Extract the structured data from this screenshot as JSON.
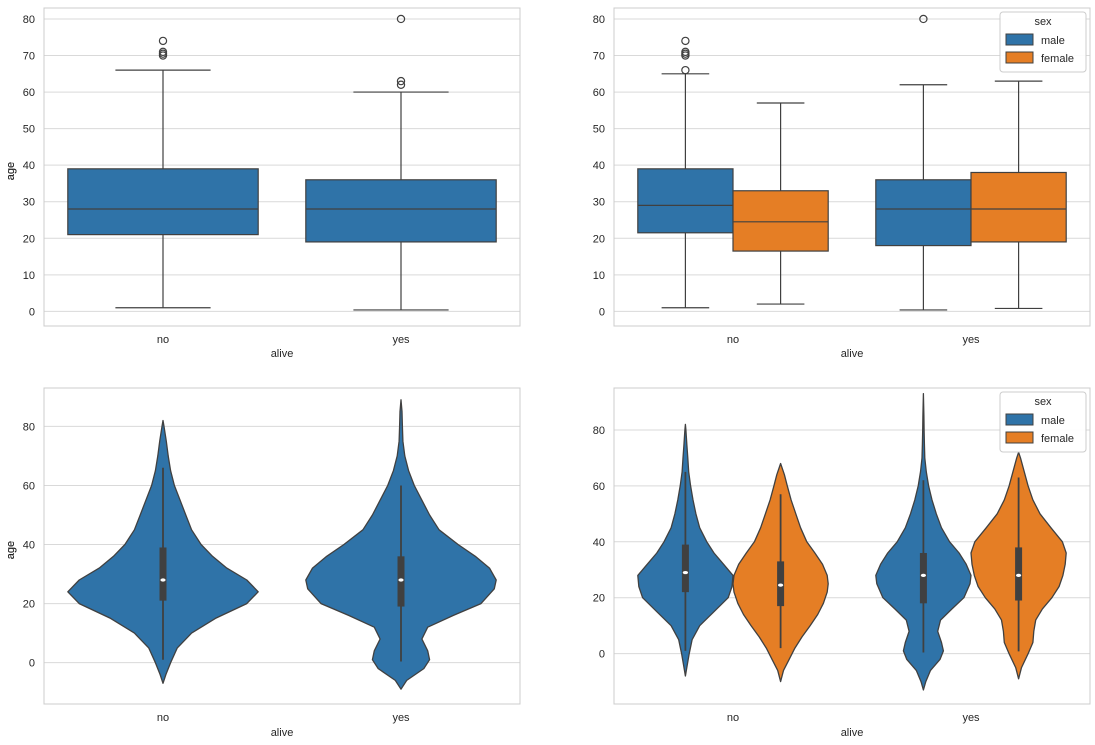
{
  "colors": {
    "male": "#2f73a8",
    "female": "#e57e25",
    "line": "#404040",
    "grid": "#d9d9d9",
    "frame": "#cccccc"
  },
  "chart_data": [
    {
      "id": "box_alive",
      "type": "box",
      "title": "",
      "xlabel": "alive",
      "ylabel": "age",
      "categories": [
        "no",
        "yes"
      ],
      "yticks": [
        0,
        10,
        20,
        30,
        40,
        50,
        60,
        70,
        80
      ],
      "ylim": [
        -4,
        83
      ],
      "grid": true,
      "series": [
        {
          "boxes": [
            {
              "category": "no",
              "whislo": 1,
              "q1": 21,
              "med": 28,
              "q3": 39,
              "whishi": 66,
              "fliers": [
                70,
                70.5,
                71,
                74
              ]
            },
            {
              "category": "yes",
              "whislo": 0.4,
              "q1": 19,
              "med": 28,
              "q3": 36,
              "whishi": 60,
              "fliers": [
                62,
                63,
                80
              ]
            }
          ]
        }
      ]
    },
    {
      "id": "box_alive_sex",
      "type": "box",
      "title": "",
      "xlabel": "alive",
      "ylabel": "age",
      "categories": [
        "no",
        "yes"
      ],
      "yticks": [
        0,
        10,
        20,
        30,
        40,
        50,
        60,
        70,
        80
      ],
      "ylim": [
        -4,
        83
      ],
      "grid": true,
      "legend": {
        "title": "sex",
        "position": "top-right"
      },
      "series": [
        {
          "name": "male",
          "boxes": [
            {
              "category": "no",
              "whislo": 1,
              "q1": 21.5,
              "med": 29,
              "q3": 39,
              "whishi": 65,
              "fliers": [
                66,
                70,
                70.5,
                71,
                74
              ]
            },
            {
              "category": "yes",
              "whislo": 0.4,
              "q1": 18,
              "med": 28,
              "q3": 36,
              "whishi": 62,
              "fliers": [
                80
              ]
            }
          ]
        },
        {
          "name": "female",
          "boxes": [
            {
              "category": "no",
              "whislo": 2,
              "q1": 16.5,
              "med": 24.5,
              "q3": 33,
              "whishi": 57,
              "fliers": []
            },
            {
              "category": "yes",
              "whislo": 0.8,
              "q1": 19,
              "med": 28,
              "q3": 38,
              "whishi": 63,
              "fliers": []
            }
          ]
        }
      ]
    },
    {
      "id": "violin_alive",
      "type": "violin",
      "title": "",
      "xlabel": "alive",
      "ylabel": "age",
      "categories": [
        "no",
        "yes"
      ],
      "yticks": [
        0,
        20,
        40,
        60,
        80
      ],
      "ylim": [
        -14,
        93
      ],
      "grid": true,
      "series": [
        {
          "violins": [
            {
              "category": "no",
              "min": -7,
              "max": 82,
              "q1": 21,
              "med": 28,
              "q3": 39,
              "whislo": 1,
              "whishi": 66,
              "profile": [
                [
                  -7,
                  0
                ],
                [
                  -4,
                  0.03
                ],
                [
                  0,
                  0.08
                ],
                [
                  5,
                  0.15
                ],
                [
                  10,
                  0.3
                ],
                [
                  15,
                  0.55
                ],
                [
                  20,
                  0.88
                ],
                [
                  24,
                  1.0
                ],
                [
                  28,
                  0.88
                ],
                [
                  32,
                  0.67
                ],
                [
                  36,
                  0.52
                ],
                [
                  40,
                  0.4
                ],
                [
                  45,
                  0.3
                ],
                [
                  50,
                  0.24
                ],
                [
                  55,
                  0.18
                ],
                [
                  60,
                  0.12
                ],
                [
                  65,
                  0.08
                ],
                [
                  70,
                  0.055
                ],
                [
                  75,
                  0.035
                ],
                [
                  80,
                  0.01
                ],
                [
                  82,
                  0
                ]
              ]
            },
            {
              "category": "yes",
              "min": -9,
              "max": 89,
              "q1": 19,
              "med": 28,
              "q3": 36,
              "whislo": 0.4,
              "whishi": 60,
              "profile": [
                [
                  -9,
                  0
                ],
                [
                  -6,
                  0.06
                ],
                [
                  -2,
                  0.24
                ],
                [
                  1,
                  0.3
                ],
                [
                  4,
                  0.28
                ],
                [
                  8,
                  0.22
                ],
                [
                  12,
                  0.28
                ],
                [
                  16,
                  0.55
                ],
                [
                  20,
                  0.84
                ],
                [
                  25,
                  0.98
                ],
                [
                  28,
                  1.0
                ],
                [
                  32,
                  0.93
                ],
                [
                  36,
                  0.78
                ],
                [
                  40,
                  0.6
                ],
                [
                  45,
                  0.4
                ],
                [
                  50,
                  0.3
                ],
                [
                  55,
                  0.22
                ],
                [
                  60,
                  0.14
                ],
                [
                  65,
                  0.08
                ],
                [
                  70,
                  0.04
                ],
                [
                  75,
                  0.02
                ],
                [
                  80,
                  0.015
                ],
                [
                  85,
                  0.01
                ],
                [
                  89,
                  0
                ]
              ]
            }
          ]
        }
      ]
    },
    {
      "id": "violin_alive_sex",
      "type": "violin",
      "title": "",
      "xlabel": "alive",
      "ylabel": "age",
      "categories": [
        "no",
        "yes"
      ],
      "yticks": [
        0,
        20,
        40,
        60,
        80
      ],
      "ylim": [
        -18,
        95
      ],
      "grid": true,
      "legend": {
        "title": "sex",
        "position": "top-right"
      },
      "series": [
        {
          "name": "male",
          "violins": [
            {
              "category": "no",
              "min": -8,
              "max": 82,
              "q1": 22,
              "med": 29,
              "q3": 39,
              "whislo": 1,
              "whishi": 65,
              "profile": [
                [
                  -8,
                  0
                ],
                [
                  -5,
                  0.03
                ],
                [
                  0,
                  0.08
                ],
                [
                  5,
                  0.14
                ],
                [
                  10,
                  0.3
                ],
                [
                  15,
                  0.6
                ],
                [
                  20,
                  0.9
                ],
                [
                  24,
                  0.98
                ],
                [
                  28,
                  1.0
                ],
                [
                  32,
                  0.8
                ],
                [
                  36,
                  0.6
                ],
                [
                  40,
                  0.45
                ],
                [
                  45,
                  0.3
                ],
                [
                  50,
                  0.22
                ],
                [
                  55,
                  0.16
                ],
                [
                  60,
                  0.11
                ],
                [
                  65,
                  0.07
                ],
                [
                  70,
                  0.05
                ],
                [
                  75,
                  0.03
                ],
                [
                  80,
                  0.01
                ],
                [
                  82,
                  0
                ]
              ]
            },
            {
              "category": "yes",
              "min": -13,
              "max": 93,
              "q1": 18,
              "med": 28,
              "q3": 36,
              "whislo": 0.4,
              "whishi": 62,
              "profile": [
                [
                  -13,
                  0
                ],
                [
                  -10,
                  0.05
                ],
                [
                  -6,
                  0.15
                ],
                [
                  -2,
                  0.35
                ],
                [
                  1,
                  0.42
                ],
                [
                  4,
                  0.38
                ],
                [
                  8,
                  0.3
                ],
                [
                  12,
                  0.36
                ],
                [
                  16,
                  0.6
                ],
                [
                  20,
                  0.85
                ],
                [
                  25,
                  0.98
                ],
                [
                  28,
                  1.0
                ],
                [
                  32,
                  0.9
                ],
                [
                  36,
                  0.75
                ],
                [
                  40,
                  0.55
                ],
                [
                  45,
                  0.38
                ],
                [
                  50,
                  0.27
                ],
                [
                  55,
                  0.18
                ],
                [
                  60,
                  0.11
                ],
                [
                  65,
                  0.06
                ],
                [
                  70,
                  0.03
                ],
                [
                  75,
                  0.02
                ],
                [
                  80,
                  0.015
                ],
                [
                  85,
                  0.01
                ],
                [
                  93,
                  0
                ]
              ]
            }
          ]
        },
        {
          "name": "female",
          "violins": [
            {
              "category": "no",
              "min": -10,
              "max": 68,
              "q1": 17,
              "med": 24.5,
              "q3": 33,
              "whislo": 2,
              "whishi": 57,
              "profile": [
                [
                  -10,
                  0
                ],
                [
                  -6,
                  0.06
                ],
                [
                  -2,
                  0.18
                ],
                [
                  2,
                  0.3
                ],
                [
                  6,
                  0.45
                ],
                [
                  10,
                  0.62
                ],
                [
                  14,
                  0.78
                ],
                [
                  18,
                  0.9
                ],
                [
                  22,
                  0.98
                ],
                [
                  25,
                  1.0
                ],
                [
                  28,
                  0.98
                ],
                [
                  32,
                  0.88
                ],
                [
                  36,
                  0.72
                ],
                [
                  40,
                  0.55
                ],
                [
                  45,
                  0.42
                ],
                [
                  50,
                  0.32
                ],
                [
                  55,
                  0.22
                ],
                [
                  60,
                  0.14
                ],
                [
                  64,
                  0.08
                ],
                [
                  68,
                  0
                ]
              ]
            },
            {
              "category": "yes",
              "min": -9,
              "max": 72,
              "q1": 19,
              "med": 28,
              "q3": 38,
              "whislo": 0.8,
              "whishi": 63,
              "profile": [
                [
                  -9,
                  0
                ],
                [
                  -5,
                  0.06
                ],
                [
                  0,
                  0.2
                ],
                [
                  4,
                  0.3
                ],
                [
                  8,
                  0.32
                ],
                [
                  12,
                  0.36
                ],
                [
                  16,
                  0.5
                ],
                [
                  20,
                  0.7
                ],
                [
                  24,
                  0.85
                ],
                [
                  28,
                  0.93
                ],
                [
                  32,
                  0.98
                ],
                [
                  36,
                  1.0
                ],
                [
                  40,
                  0.92
                ],
                [
                  45,
                  0.68
                ],
                [
                  50,
                  0.45
                ],
                [
                  55,
                  0.3
                ],
                [
                  60,
                  0.2
                ],
                [
                  65,
                  0.12
                ],
                [
                  70,
                  0.04
                ],
                [
                  72,
                  0
                ]
              ]
            }
          ]
        }
      ]
    }
  ]
}
